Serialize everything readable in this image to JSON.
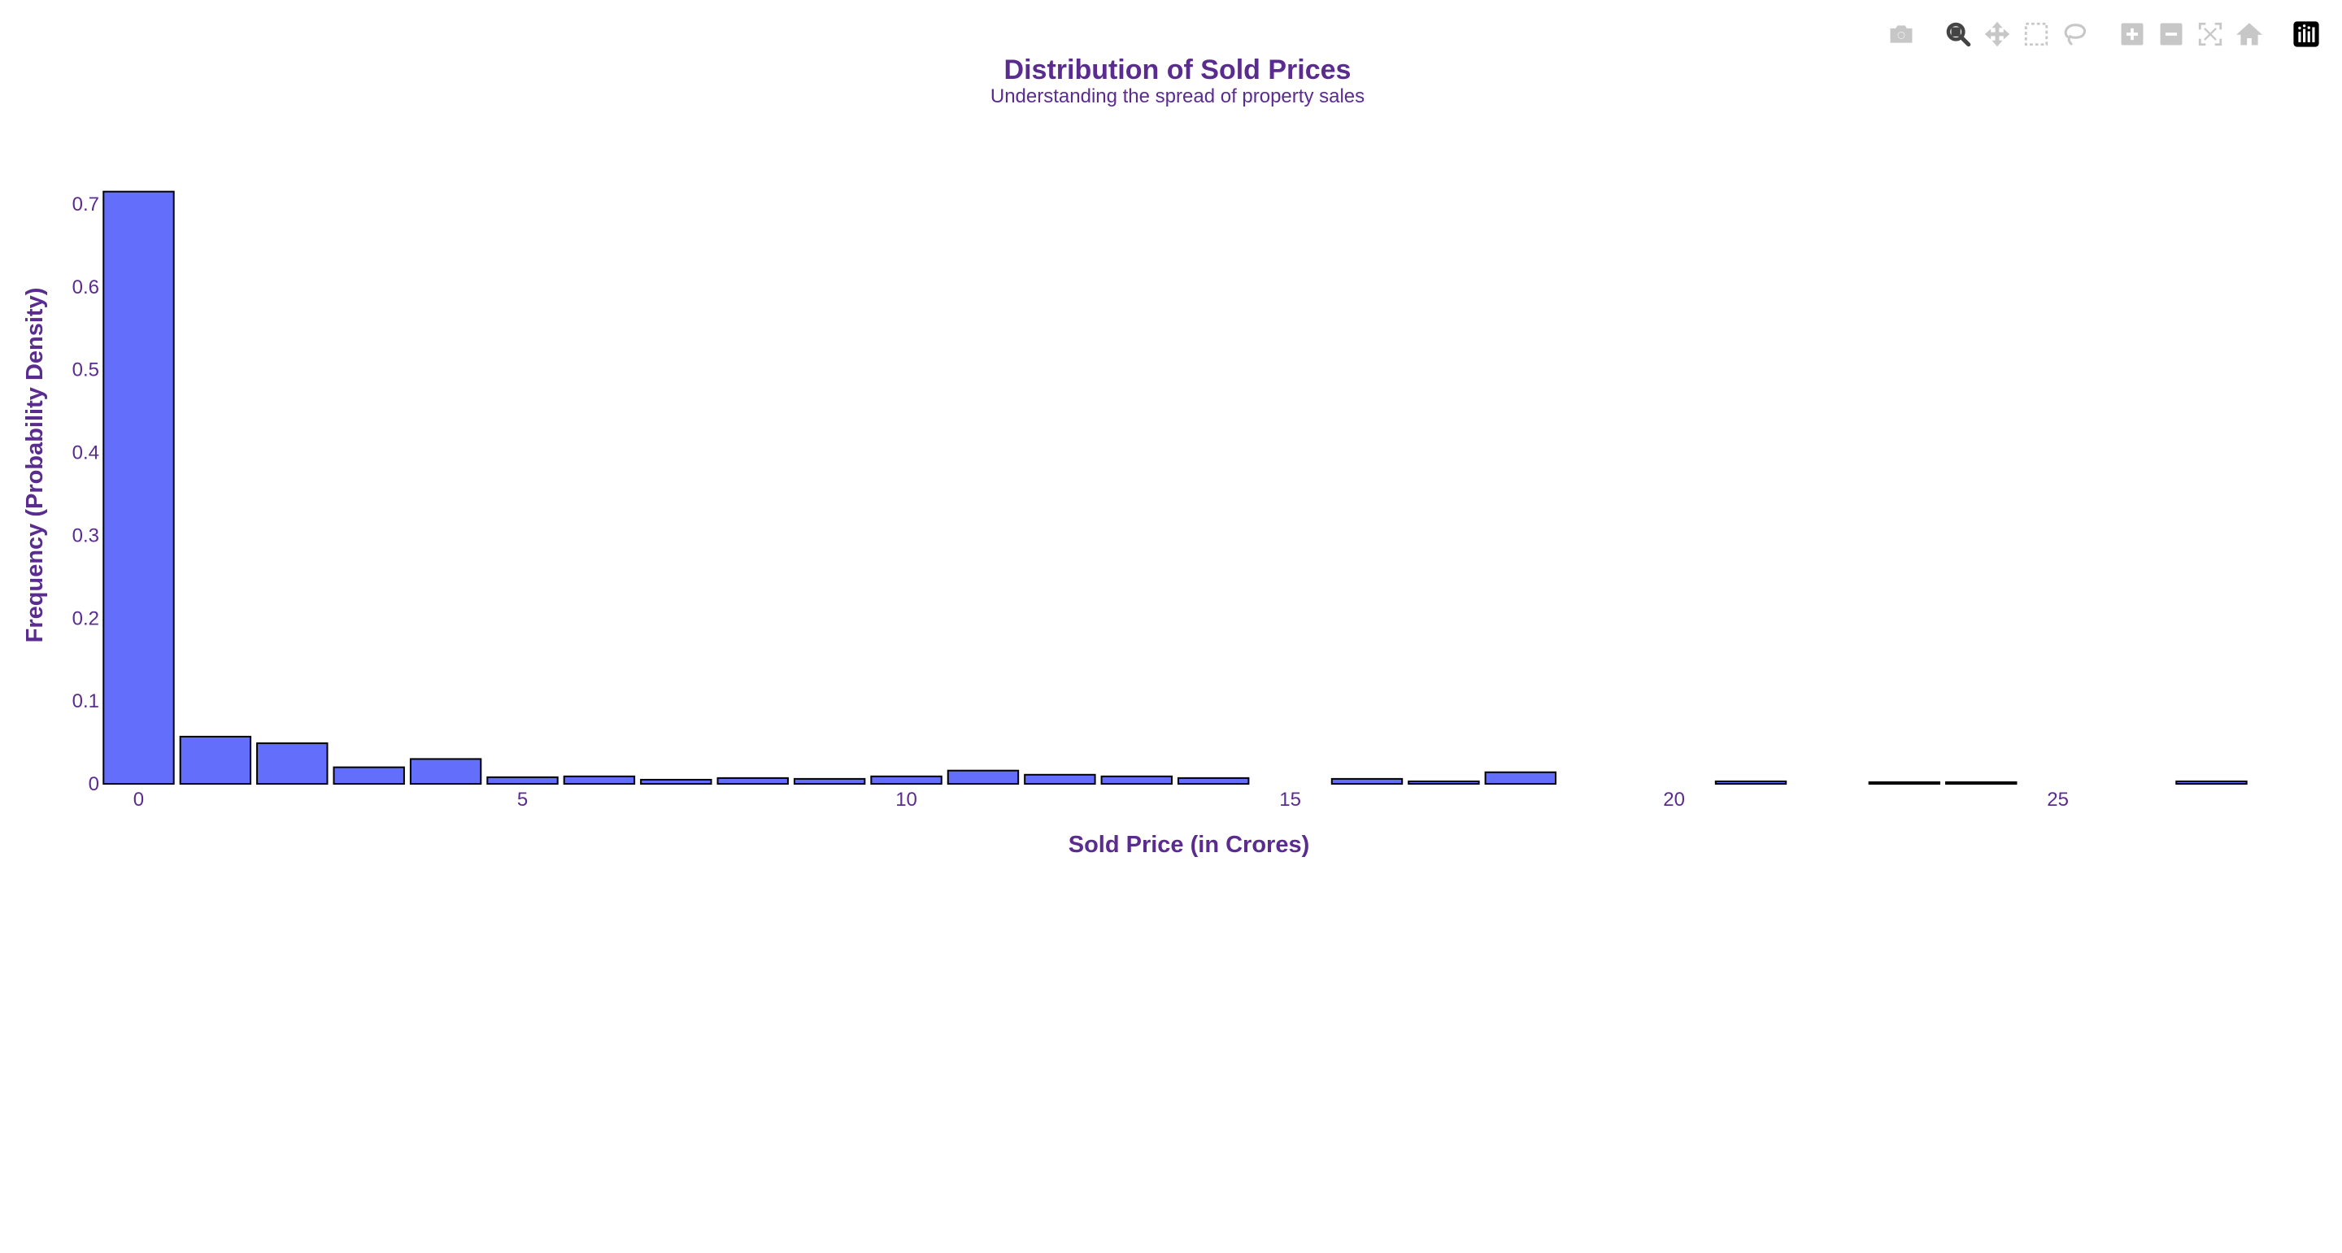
{
  "colors": {
    "bar_fill": "#636efa",
    "bar_outline": "#000000",
    "text": "#5b2c8f",
    "modebar_icon": "#c7c7c7",
    "modebar_active": "#444444",
    "logo_bg": "#000000"
  },
  "modebar": {
    "buttons": [
      {
        "icon": "camera-icon",
        "active": false
      },
      {
        "icon": "zoom-icon",
        "active": true
      },
      {
        "icon": "pan-icon",
        "active": false
      },
      {
        "icon": "box-select-icon",
        "active": false
      },
      {
        "icon": "lasso-select-icon",
        "active": false
      },
      {
        "icon": "zoom-in-icon",
        "active": false
      },
      {
        "icon": "zoom-out-icon",
        "active": false
      },
      {
        "icon": "autoscale-icon",
        "active": false
      },
      {
        "icon": "reset-axes-icon",
        "active": false
      },
      {
        "icon": "plotly-logo-icon",
        "active": false
      }
    ]
  },
  "chart_data": {
    "type": "bar",
    "title": "Distribution of Sold Prices",
    "subtitle": "Understanding the spread of property sales",
    "xlabel": "Sold Price (in Crores)",
    "ylabel": "Frequency (Probability Density)",
    "bin_width": 1,
    "xlim": [
      -0.45,
      27.8
    ],
    "ylim": [
      0,
      0.75
    ],
    "xticks": [
      0,
      5,
      10,
      15,
      20,
      25
    ],
    "yticks": [
      0,
      0.1,
      0.2,
      0.3,
      0.4,
      0.5,
      0.6,
      0.7
    ],
    "ytick_labels": [
      "0",
      "0.1",
      "0.2",
      "0.3",
      "0.4",
      "0.5",
      "0.6",
      "0.7"
    ],
    "grid": false,
    "x": [
      0,
      1,
      2,
      3,
      4,
      5,
      6,
      7,
      8,
      9,
      10,
      11,
      12,
      13,
      14,
      15,
      16,
      17,
      18,
      19,
      20,
      21,
      22,
      23,
      24,
      25,
      26,
      27
    ],
    "values": [
      0.715,
      0.057,
      0.049,
      0.02,
      0.03,
      0.008,
      0.009,
      0.005,
      0.007,
      0.006,
      0.009,
      0.016,
      0.011,
      0.009,
      0.007,
      0,
      0.006,
      0.003,
      0.014,
      0,
      0,
      0.003,
      0,
      0.002,
      0.002,
      0,
      0,
      0.003
    ]
  }
}
